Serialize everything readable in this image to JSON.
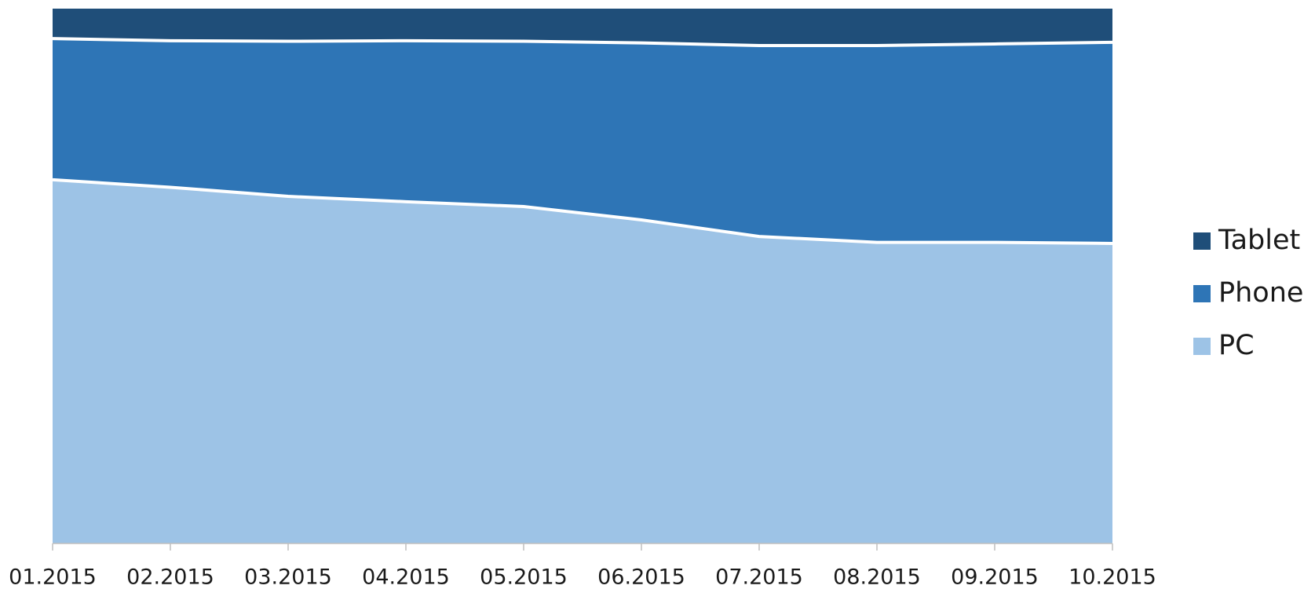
{
  "chart_data": {
    "type": "stacked_area",
    "categories": [
      "01.2015",
      "02.2015",
      "03.2015",
      "04.2015",
      "05.2015",
      "06.2015",
      "07.2015",
      "08.2015",
      "09.2015",
      "10.2015"
    ],
    "series": [
      {
        "name": "PC",
        "color": "#9dc3e6",
        "values": [
          68,
          66.6,
          64.9,
          63.9,
          63,
          60.5,
          57.4,
          56.3,
          56.3,
          56.1
        ]
      },
      {
        "name": "Phone",
        "color": "#2e75b6",
        "values": [
          26.4,
          27.4,
          29,
          30.1,
          30.9,
          33.1,
          35.7,
          36.8,
          37.1,
          37.6
        ]
      },
      {
        "name": "Tablet",
        "color": "#1f4e79",
        "values": [
          5.6,
          6,
          6.1,
          6,
          6.1,
          6.4,
          6.9,
          6.9,
          6.6,
          6.3
        ]
      }
    ],
    "ylim": [
      0,
      100
    ],
    "legend": "right"
  }
}
